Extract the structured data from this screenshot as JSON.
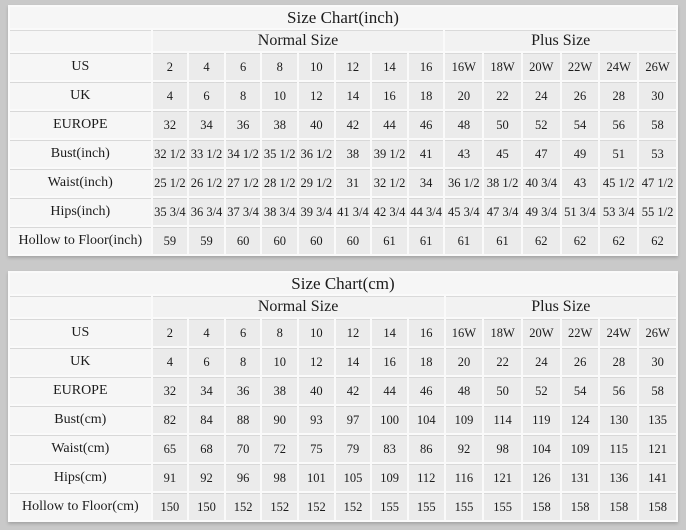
{
  "page": {
    "background_color": "#c9c9c9",
    "cell_color": "#ebebeb",
    "label_cell_color": "#f6f6f6",
    "grid_line_color": "#fafafa"
  },
  "tables": [
    {
      "title": "Size Chart(inch)",
      "group_headers": {
        "normal": "Normal Size",
        "plus": "Plus Size"
      },
      "rows": [
        {
          "label": "US",
          "normal": [
            "2",
            "4",
            "6",
            "8",
            "10",
            "12",
            "14",
            "16"
          ],
          "plus": [
            "16W",
            "18W",
            "20W",
            "22W",
            "24W",
            "26W"
          ]
        },
        {
          "label": "UK",
          "normal": [
            "4",
            "6",
            "8",
            "10",
            "12",
            "14",
            "16",
            "18"
          ],
          "plus": [
            "20",
            "22",
            "24",
            "26",
            "28",
            "30"
          ]
        },
        {
          "label": "EUROPE",
          "normal": [
            "32",
            "34",
            "36",
            "38",
            "40",
            "42",
            "44",
            "46"
          ],
          "plus": [
            "48",
            "50",
            "52",
            "54",
            "56",
            "58"
          ]
        },
        {
          "label": "Bust(inch)",
          "normal": [
            "32 1/2",
            "33 1/2",
            "34 1/2",
            "35 1/2",
            "36 1/2",
            "38",
            "39 1/2",
            "41"
          ],
          "plus": [
            "43",
            "45",
            "47",
            "49",
            "51",
            "53"
          ]
        },
        {
          "label": "Waist(inch)",
          "normal": [
            "25 1/2",
            "26 1/2",
            "27 1/2",
            "28 1/2",
            "29 1/2",
            "31",
            "32 1/2",
            "34"
          ],
          "plus": [
            "36 1/2",
            "38 1/2",
            "40 3/4",
            "43",
            "45 1/2",
            "47 1/2"
          ]
        },
        {
          "label": "Hips(inch)",
          "normal": [
            "35 3/4",
            "36 3/4",
            "37 3/4",
            "38 3/4",
            "39 3/4",
            "41 3/4",
            "42 3/4",
            "44 3/4"
          ],
          "plus": [
            "45 3/4",
            "47 3/4",
            "49 3/4",
            "51 3/4",
            "53 3/4",
            "55 1/2"
          ]
        },
        {
          "label": "Hollow to Floor(inch)",
          "normal": [
            "59",
            "59",
            "60",
            "60",
            "60",
            "60",
            "61",
            "61"
          ],
          "plus": [
            "61",
            "61",
            "62",
            "62",
            "62",
            "62"
          ]
        }
      ]
    },
    {
      "title": "Size Chart(cm)",
      "group_headers": {
        "normal": "Normal Size",
        "plus": "Plus Size"
      },
      "rows": [
        {
          "label": "US",
          "normal": [
            "2",
            "4",
            "6",
            "8",
            "10",
            "12",
            "14",
            "16"
          ],
          "plus": [
            "16W",
            "18W",
            "20W",
            "22W",
            "24W",
            "26W"
          ]
        },
        {
          "label": "UK",
          "normal": [
            "4",
            "6",
            "8",
            "10",
            "12",
            "14",
            "16",
            "18"
          ],
          "plus": [
            "20",
            "22",
            "24",
            "26",
            "28",
            "30"
          ]
        },
        {
          "label": "EUROPE",
          "normal": [
            "32",
            "34",
            "36",
            "38",
            "40",
            "42",
            "44",
            "46"
          ],
          "plus": [
            "48",
            "50",
            "52",
            "54",
            "56",
            "58"
          ]
        },
        {
          "label": "Bust(cm)",
          "normal": [
            "82",
            "84",
            "88",
            "90",
            "93",
            "97",
            "100",
            "104"
          ],
          "plus": [
            "109",
            "114",
            "119",
            "124",
            "130",
            "135"
          ]
        },
        {
          "label": "Waist(cm)",
          "normal": [
            "65",
            "68",
            "70",
            "72",
            "75",
            "79",
            "83",
            "86"
          ],
          "plus": [
            "92",
            "98",
            "104",
            "109",
            "115",
            "121"
          ]
        },
        {
          "label": "Hips(cm)",
          "normal": [
            "91",
            "92",
            "96",
            "98",
            "101",
            "105",
            "109",
            "112"
          ],
          "plus": [
            "116",
            "121",
            "126",
            "131",
            "136",
            "141"
          ]
        },
        {
          "label": "Hollow to Floor(cm)",
          "normal": [
            "150",
            "150",
            "152",
            "152",
            "152",
            "152",
            "155",
            "155"
          ],
          "plus": [
            "155",
            "155",
            "158",
            "158",
            "158",
            "158"
          ]
        }
      ]
    }
  ]
}
